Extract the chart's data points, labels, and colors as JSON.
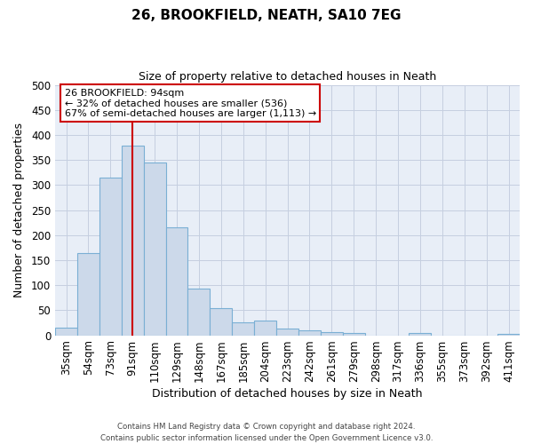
{
  "title": "26, BROOKFIELD, NEATH, SA10 7EG",
  "subtitle": "Size of property relative to detached houses in Neath",
  "xlabel": "Distribution of detached houses by size in Neath",
  "ylabel": "Number of detached properties",
  "bin_labels": [
    "35sqm",
    "54sqm",
    "73sqm",
    "91sqm",
    "110sqm",
    "129sqm",
    "148sqm",
    "167sqm",
    "185sqm",
    "204sqm",
    "223sqm",
    "242sqm",
    "261sqm",
    "279sqm",
    "298sqm",
    "317sqm",
    "336sqm",
    "355sqm",
    "373sqm",
    "392sqm",
    "411sqm"
  ],
  "bar_heights": [
    15,
    165,
    315,
    378,
    345,
    215,
    93,
    55,
    25,
    29,
    14,
    10,
    7,
    5,
    0,
    0,
    4,
    0,
    0,
    0,
    3
  ],
  "bar_color": "#ccd9ea",
  "bar_edge_color": "#7aafd4",
  "vline_x": 3,
  "vline_color": "#cc0000",
  "annotation_title": "26 BROOKFIELD: 94sqm",
  "annotation_line1": "← 32% of detached houses are smaller (536)",
  "annotation_line2": "67% of semi-detached houses are larger (1,113) →",
  "annotation_box_color": "#cc0000",
  "ylim": [
    0,
    500
  ],
  "yticks": [
    0,
    50,
    100,
    150,
    200,
    250,
    300,
    350,
    400,
    450,
    500
  ],
  "footer_line1": "Contains HM Land Registry data © Crown copyright and database right 2024.",
  "footer_line2": "Contains public sector information licensed under the Open Government Licence v3.0.",
  "background_color": "#ffffff",
  "plot_bg_color": "#e8eef7",
  "grid_color": "#c5cfe0"
}
